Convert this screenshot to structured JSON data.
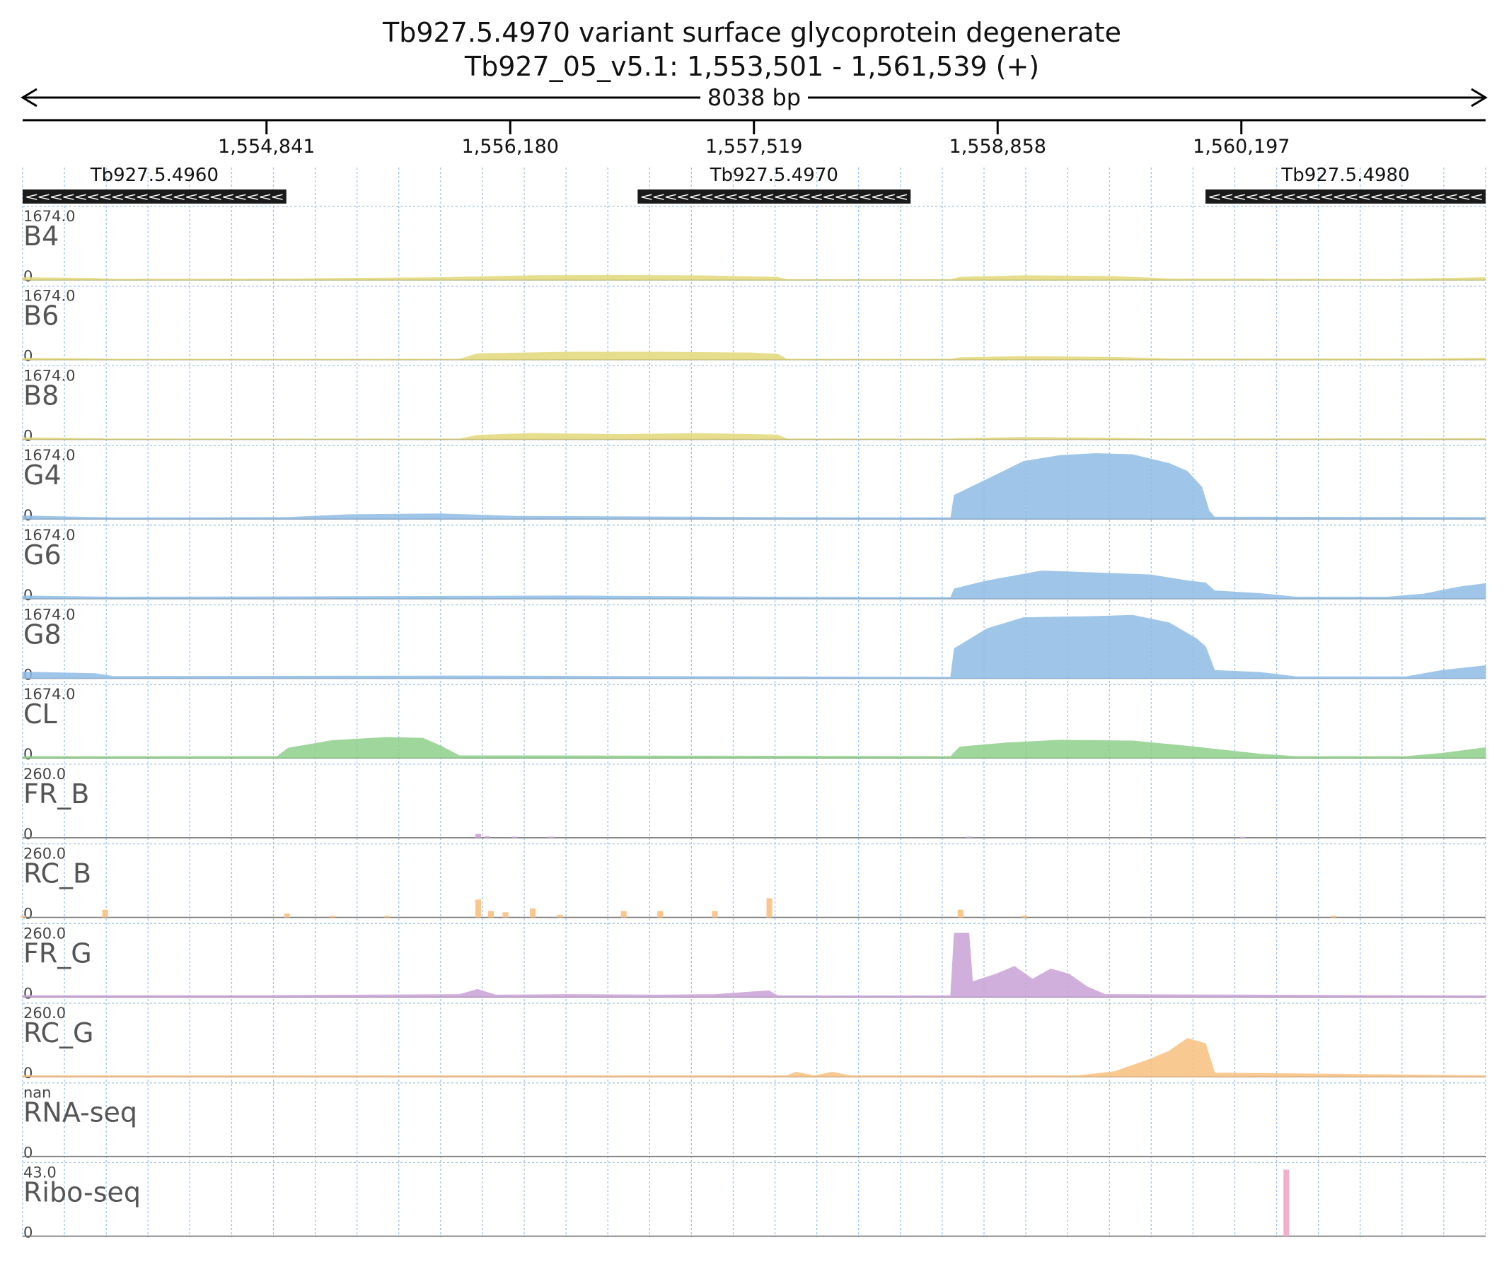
{
  "header": {
    "title_line1": "Tb927.5.4970  variant surface glycoprotein  degenerate",
    "title_line2": "Tb927_05_v5.1: 1,553,501 - 1,561,539 (+)",
    "span_label": "8038 bp"
  },
  "chart_data": {
    "type": "area",
    "region": {
      "chrom": "Tb927_05_v5.1",
      "start": 1553501,
      "end": 1561539,
      "strand": "+"
    },
    "x_ticks": [
      {
        "value": 1554841,
        "label": "1,554,841"
      },
      {
        "value": 1556180,
        "label": "1,556,180"
      },
      {
        "value": 1557519,
        "label": "1,557,519"
      },
      {
        "value": 1558858,
        "label": "1,558,858"
      },
      {
        "value": 1560197,
        "label": "1,560,197"
      }
    ],
    "genes": [
      {
        "name": "Tb927.5.4960",
        "start": 1553501,
        "end": 1554950,
        "strand": "-"
      },
      {
        "name": "Tb927.5.4970",
        "start": 1556880,
        "end": 1558380,
        "strand": "-"
      },
      {
        "name": "Tb927.5.4980",
        "start": 1560000,
        "end": 1561539,
        "strand": "-"
      }
    ],
    "colors": {
      "B": "#e3d97a",
      "G": "#8fbde6",
      "CL": "#8fd08a",
      "FR": "#c9a2d6",
      "RC": "#f9c07f",
      "RNA": "#aaaaaa",
      "Ribo": "#f2a7c8"
    },
    "tracks": [
      {
        "name": "B4",
        "max_label": "1674.0",
        "zero_label": "0",
        "max": 1674,
        "color_key": "B",
        "style": "area",
        "points": [
          [
            1553501,
            60
          ],
          [
            1553900,
            40
          ],
          [
            1554000,
            20
          ],
          [
            1554950,
            25
          ],
          [
            1555200,
            40
          ],
          [
            1555800,
            60
          ],
          [
            1556300,
            110
          ],
          [
            1556800,
            115
          ],
          [
            1557200,
            110
          ],
          [
            1557650,
            70
          ],
          [
            1557700,
            10
          ],
          [
            1558600,
            10
          ],
          [
            1558650,
            70
          ],
          [
            1559000,
            110
          ],
          [
            1559500,
            90
          ],
          [
            1559800,
            30
          ],
          [
            1561000,
            15
          ],
          [
            1561300,
            40
          ],
          [
            1561539,
            60
          ]
        ]
      },
      {
        "name": "B6",
        "max_label": "1674.0",
        "zero_label": "0",
        "max": 1674,
        "color_key": "B",
        "style": "area",
        "points": [
          [
            1553501,
            40
          ],
          [
            1553900,
            20
          ],
          [
            1554000,
            10
          ],
          [
            1555900,
            10
          ],
          [
            1556000,
            150
          ],
          [
            1556500,
            190
          ],
          [
            1557000,
            190
          ],
          [
            1557500,
            170
          ],
          [
            1557650,
            140
          ],
          [
            1557700,
            10
          ],
          [
            1558600,
            10
          ],
          [
            1558650,
            50
          ],
          [
            1559000,
            80
          ],
          [
            1559500,
            60
          ],
          [
            1559800,
            20
          ],
          [
            1561200,
            20
          ],
          [
            1561539,
            40
          ]
        ]
      },
      {
        "name": "B8",
        "max_label": "1674.0",
        "zero_label": "0",
        "max": 1674,
        "color_key": "B",
        "style": "area",
        "points": [
          [
            1553501,
            40
          ],
          [
            1553900,
            20
          ],
          [
            1554000,
            10
          ],
          [
            1555900,
            10
          ],
          [
            1556000,
            100
          ],
          [
            1556300,
            150
          ],
          [
            1556800,
            120
          ],
          [
            1557200,
            150
          ],
          [
            1557650,
            110
          ],
          [
            1557700,
            10
          ],
          [
            1558600,
            10
          ],
          [
            1558650,
            20
          ],
          [
            1559000,
            50
          ],
          [
            1559500,
            30
          ],
          [
            1559800,
            10
          ],
          [
            1561539,
            20
          ]
        ]
      },
      {
        "name": "G4",
        "max_label": "1674.0",
        "zero_label": "0",
        "max": 1674,
        "color_key": "G",
        "style": "area",
        "points": [
          [
            1553501,
            80
          ],
          [
            1554000,
            30
          ],
          [
            1554950,
            40
          ],
          [
            1555300,
            110
          ],
          [
            1555800,
            130
          ],
          [
            1556200,
            70
          ],
          [
            1557650,
            40
          ],
          [
            1558600,
            30
          ],
          [
            1558620,
            600
          ],
          [
            1558800,
            1000
          ],
          [
            1559000,
            1450
          ],
          [
            1559200,
            1600
          ],
          [
            1559400,
            1650
          ],
          [
            1559600,
            1620
          ],
          [
            1559800,
            1400
          ],
          [
            1559900,
            1200
          ],
          [
            1559980,
            800
          ],
          [
            1560020,
            200
          ],
          [
            1560050,
            50
          ],
          [
            1561539,
            40
          ]
        ]
      },
      {
        "name": "G6",
        "max_label": "1674.0",
        "zero_label": "0",
        "max": 1674,
        "color_key": "G",
        "style": "area",
        "points": [
          [
            1553501,
            70
          ],
          [
            1554000,
            40
          ],
          [
            1555000,
            50
          ],
          [
            1556500,
            70
          ],
          [
            1557650,
            40
          ],
          [
            1558600,
            30
          ],
          [
            1558620,
            250
          ],
          [
            1558800,
            450
          ],
          [
            1559100,
            700
          ],
          [
            1559400,
            650
          ],
          [
            1559700,
            600
          ],
          [
            1559900,
            450
          ],
          [
            1560000,
            400
          ],
          [
            1560050,
            200
          ],
          [
            1560300,
            130
          ],
          [
            1560500,
            40
          ],
          [
            1561000,
            40
          ],
          [
            1561200,
            120
          ],
          [
            1561400,
            300
          ],
          [
            1561539,
            380
          ]
        ]
      },
      {
        "name": "G8",
        "max_label": "1674.0",
        "zero_label": "0",
        "max": 1674,
        "color_key": "G",
        "style": "area",
        "points": [
          [
            1553501,
            160
          ],
          [
            1553900,
            120
          ],
          [
            1554000,
            50
          ],
          [
            1556000,
            60
          ],
          [
            1557650,
            40
          ],
          [
            1558600,
            30
          ],
          [
            1558620,
            750
          ],
          [
            1558800,
            1250
          ],
          [
            1559000,
            1530
          ],
          [
            1559400,
            1560
          ],
          [
            1559600,
            1590
          ],
          [
            1559800,
            1400
          ],
          [
            1559950,
            1000
          ],
          [
            1560000,
            800
          ],
          [
            1560050,
            200
          ],
          [
            1560300,
            150
          ],
          [
            1560500,
            40
          ],
          [
            1561100,
            40
          ],
          [
            1561300,
            200
          ],
          [
            1561539,
            320
          ]
        ]
      },
      {
        "name": "CL",
        "max_label": "1674.0",
        "zero_label": "0",
        "max": 1674,
        "color_key": "CL",
        "style": "area",
        "points": [
          [
            1553501,
            40
          ],
          [
            1554900,
            40
          ],
          [
            1554960,
            250
          ],
          [
            1555200,
            440
          ],
          [
            1555500,
            520
          ],
          [
            1555700,
            500
          ],
          [
            1555800,
            300
          ],
          [
            1555900,
            60
          ],
          [
            1558600,
            40
          ],
          [
            1558650,
            280
          ],
          [
            1558900,
            380
          ],
          [
            1559200,
            450
          ],
          [
            1559600,
            430
          ],
          [
            1559900,
            300
          ],
          [
            1560300,
            100
          ],
          [
            1560500,
            40
          ],
          [
            1561100,
            40
          ],
          [
            1561300,
            120
          ],
          [
            1561539,
            260
          ]
        ]
      },
      {
        "name": "FR_B",
        "max_label": "260.0",
        "zero_label": "0",
        "max": 260,
        "color_key": "FR",
        "style": "bars",
        "points": [
          [
            1556000,
            15
          ],
          [
            1556050,
            6
          ],
          [
            1556200,
            4
          ],
          [
            1556400,
            4
          ],
          [
            1558700,
            4
          ],
          [
            1560200,
            3
          ]
        ]
      },
      {
        "name": "RC_B",
        "max_label": "260.0",
        "zero_label": "0",
        "max": 260,
        "color_key": "RC",
        "style": "bars",
        "points": [
          [
            1553501,
            6
          ],
          [
            1553950,
            30
          ],
          [
            1554950,
            15
          ],
          [
            1555200,
            6
          ],
          [
            1555500,
            6
          ],
          [
            1556000,
            70
          ],
          [
            1556070,
            25
          ],
          [
            1556150,
            20
          ],
          [
            1556300,
            35
          ],
          [
            1556450,
            10
          ],
          [
            1556800,
            25
          ],
          [
            1557000,
            25
          ],
          [
            1557300,
            25
          ],
          [
            1557600,
            75
          ],
          [
            1558650,
            30
          ],
          [
            1559000,
            6
          ],
          [
            1560700,
            6
          ]
        ]
      },
      {
        "name": "FR_G",
        "max_label": "260.0",
        "zero_label": "0",
        "max": 260,
        "color_key": "FR",
        "style": "area",
        "points": [
          [
            1553501,
            6
          ],
          [
            1554800,
            6
          ],
          [
            1555900,
            10
          ],
          [
            1556000,
            30
          ],
          [
            1556100,
            8
          ],
          [
            1556500,
            10
          ],
          [
            1557000,
            8
          ],
          [
            1557300,
            10
          ],
          [
            1557600,
            25
          ],
          [
            1557650,
            5
          ],
          [
            1558600,
            5
          ],
          [
            1558620,
            250
          ],
          [
            1558700,
            250
          ],
          [
            1558720,
            60
          ],
          [
            1558850,
            90
          ],
          [
            1558950,
            120
          ],
          [
            1559050,
            70
          ],
          [
            1559150,
            110
          ],
          [
            1559250,
            90
          ],
          [
            1559350,
            40
          ],
          [
            1559450,
            10
          ],
          [
            1561539,
            5
          ]
        ]
      },
      {
        "name": "RC_G",
        "max_label": "260.0",
        "zero_label": "0",
        "max": 260,
        "color_key": "RC",
        "style": "area",
        "points": [
          [
            1553501,
            4
          ],
          [
            1557700,
            4
          ],
          [
            1557750,
            18
          ],
          [
            1557850,
            4
          ],
          [
            1557950,
            18
          ],
          [
            1558050,
            4
          ],
          [
            1559300,
            4
          ],
          [
            1559500,
            20
          ],
          [
            1559700,
            70
          ],
          [
            1559800,
            100
          ],
          [
            1559900,
            150
          ],
          [
            1560000,
            130
          ],
          [
            1560050,
            15
          ],
          [
            1561539,
            4
          ]
        ]
      },
      {
        "name": "RNA-seq",
        "max_label": "nan",
        "zero_label": "0",
        "max": 1,
        "color_key": "RNA",
        "style": "area",
        "points": []
      },
      {
        "name": "Ribo-seq",
        "max_label": "43.0",
        "zero_label": "0",
        "max": 43,
        "color_key": "Ribo",
        "style": "bars",
        "points": [
          [
            1560440,
            43
          ]
        ]
      }
    ]
  }
}
